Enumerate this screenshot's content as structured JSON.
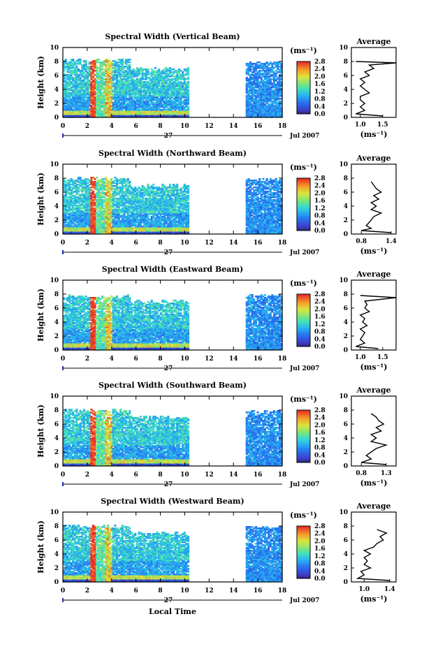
{
  "figure": {
    "xlabel": "Local Time",
    "day_label": "27",
    "date_label": "Jul 2007",
    "ylabel": "Height (km)",
    "average_title": "Average",
    "colorbar_unit": "(ms⁻¹)",
    "colorbar_ticks": [
      "0.0",
      "0.4",
      "0.8",
      "1.2",
      "1.6",
      "2.0",
      "2.4",
      "2.8"
    ],
    "colorbar_range": [
      0,
      2.8
    ]
  },
  "chart_data": [
    {
      "type": "heatmap",
      "title": "Spectral Width (Vertical Beam)",
      "xlabel": "Local Time",
      "ylabel": "Height (km)",
      "xlim": [
        0,
        18
      ],
      "ylim": [
        0,
        10
      ],
      "xticks": [
        "0",
        "2",
        "4",
        "6",
        "8",
        "10",
        "12",
        "14",
        "16",
        "18"
      ],
      "yticks": [
        "0",
        "2",
        "4",
        "6",
        "8",
        "10"
      ],
      "data_gaps_hours": [
        [
          10.5,
          15.0
        ]
      ],
      "top_height_km": 8.0,
      "high_width_bands_hours": [
        [
          2.1,
          2.6
        ],
        [
          3.3,
          3.9
        ]
      ],
      "average_profile": {
        "xlabel": "(ms⁻¹)",
        "xticks": [
          "1.0",
          "1.5"
        ],
        "xlim": [
          0.8,
          1.8
        ],
        "height_km": [
          0.2,
          0.5,
          1.0,
          1.5,
          2.0,
          2.5,
          3.0,
          3.5,
          4.0,
          4.5,
          5.0,
          5.5,
          6.0,
          6.5,
          7.0,
          7.5,
          7.8,
          8.0
        ],
        "width_ms": [
          1.5,
          0.9,
          1.1,
          1.0,
          1.1,
          1.0,
          1.0,
          1.2,
          1.1,
          1.0,
          1.1,
          1.0,
          1.2,
          1.1,
          1.3,
          1.2,
          1.8,
          0.9
        ]
      }
    },
    {
      "type": "heatmap",
      "title": "Spectral Width (Northward Beam)",
      "xlabel": "Local Time",
      "ylabel": "Height (km)",
      "xlim": [
        0,
        18
      ],
      "ylim": [
        0,
        10
      ],
      "xticks": [
        "0",
        "2",
        "4",
        "6",
        "8",
        "10",
        "12",
        "14",
        "16",
        "18"
      ],
      "yticks": [
        "0",
        "2",
        "4",
        "6",
        "8",
        "10"
      ],
      "data_gaps_hours": [
        [
          10.5,
          15.0
        ]
      ],
      "top_height_km": 7.8,
      "high_width_bands_hours": [
        [
          2.1,
          2.6
        ],
        [
          3.3,
          3.9
        ]
      ],
      "average_profile": {
        "xlabel": "(ms⁻¹)",
        "xticks": [
          "0.8",
          "1.4"
        ],
        "xlim": [
          0.6,
          1.5
        ],
        "height_km": [
          0.2,
          0.5,
          0.8,
          1.2,
          1.6,
          2.0,
          2.5,
          3.0,
          3.5,
          4.0,
          4.5,
          5.0,
          5.5,
          6.0,
          6.5,
          7.0,
          7.5
        ],
        "width_ms": [
          1.4,
          0.8,
          1.0,
          0.9,
          0.95,
          1.0,
          1.05,
          1.2,
          1.0,
          1.1,
          1.0,
          1.15,
          1.05,
          1.2,
          1.1,
          1.05,
          1.0
        ]
      }
    },
    {
      "type": "heatmap",
      "title": "Spectral Width (Eastward Beam)",
      "xlabel": "Local Time",
      "ylabel": "Height (km)",
      "xlim": [
        0,
        18
      ],
      "ylim": [
        0,
        10
      ],
      "xticks": [
        "0",
        "2",
        "4",
        "6",
        "8",
        "10",
        "12",
        "14",
        "16",
        "18"
      ],
      "yticks": [
        "0",
        "2",
        "4",
        "6",
        "8",
        "10"
      ],
      "data_gaps_hours": [
        [
          10.5,
          15.0
        ]
      ],
      "top_height_km": 7.6,
      "high_width_bands_hours": [
        [
          2.1,
          2.6
        ],
        [
          3.3,
          3.9
        ]
      ],
      "average_profile": {
        "xlabel": "(ms⁻¹)",
        "xticks": [
          "1.0",
          "1.5"
        ],
        "xlim": [
          0.8,
          1.8
        ],
        "height_km": [
          0.2,
          0.5,
          1.0,
          1.5,
          2.0,
          2.5,
          3.0,
          3.5,
          4.0,
          4.5,
          5.0,
          5.5,
          6.0,
          6.5,
          7.0,
          7.5,
          7.8
        ],
        "width_ms": [
          1.4,
          0.9,
          1.1,
          1.0,
          1.05,
          1.1,
          1.0,
          1.15,
          1.05,
          1.1,
          1.0,
          1.2,
          1.1,
          1.15,
          1.1,
          1.8,
          1.0
        ]
      }
    },
    {
      "type": "heatmap",
      "title": "Spectral Width (Southward Beam)",
      "xlabel": "Local Time",
      "ylabel": "Height (km)",
      "xlim": [
        0,
        18
      ],
      "ylim": [
        0,
        10
      ],
      "xticks": [
        "0",
        "2",
        "4",
        "6",
        "8",
        "10",
        "12",
        "14",
        "16",
        "18"
      ],
      "yticks": [
        "0",
        "2",
        "4",
        "6",
        "8",
        "10"
      ],
      "data_gaps_hours": [
        [
          10.5,
          15.0
        ]
      ],
      "top_height_km": 7.8,
      "high_width_bands_hours": [
        [
          2.1,
          2.6
        ],
        [
          3.3,
          3.9
        ]
      ],
      "average_profile": {
        "xlabel": "(ms⁻¹)",
        "xticks": [
          "0.8",
          "1.3"
        ],
        "xlim": [
          0.6,
          1.5
        ],
        "height_km": [
          0.2,
          0.5,
          1.0,
          1.5,
          2.0,
          2.5,
          3.0,
          3.5,
          4.0,
          4.5,
          5.0,
          5.5,
          6.0,
          6.5,
          7.0,
          7.5
        ],
        "width_ms": [
          1.3,
          0.8,
          1.0,
          0.9,
          1.0,
          1.1,
          1.3,
          1.0,
          1.1,
          1.0,
          1.2,
          1.1,
          1.25,
          1.15,
          1.1,
          1.0
        ]
      }
    },
    {
      "type": "heatmap",
      "title": "Spectral Width (Westward Beam)",
      "xlabel": "Local Time",
      "ylabel": "Height (km)",
      "xlim": [
        0,
        18
      ],
      "ylim": [
        0,
        10
      ],
      "xticks": [
        "0",
        "2",
        "4",
        "6",
        "8",
        "10",
        "12",
        "14",
        "16",
        "18"
      ],
      "yticks": [
        "0",
        "2",
        "4",
        "6",
        "8",
        "10"
      ],
      "data_gaps_hours": [
        [
          10.5,
          15.0
        ]
      ],
      "top_height_km": 7.8,
      "high_width_bands_hours": [
        [
          2.1,
          2.6
        ],
        [
          3.3,
          3.9
        ]
      ],
      "average_profile": {
        "xlabel": "(ms⁻¹)",
        "xticks": [
          "1.0",
          "1.4"
        ],
        "xlim": [
          0.8,
          1.5
        ],
        "height_km": [
          0.2,
          0.5,
          1.0,
          1.5,
          2.0,
          2.5,
          3.0,
          3.5,
          4.0,
          4.5,
          5.0,
          5.5,
          6.0,
          6.5,
          7.0,
          7.5
        ],
        "width_ms": [
          1.4,
          0.9,
          1.0,
          0.95,
          1.1,
          1.0,
          1.05,
          1.0,
          1.1,
          1.0,
          1.15,
          1.2,
          1.3,
          1.25,
          1.35,
          1.2
        ]
      }
    }
  ]
}
